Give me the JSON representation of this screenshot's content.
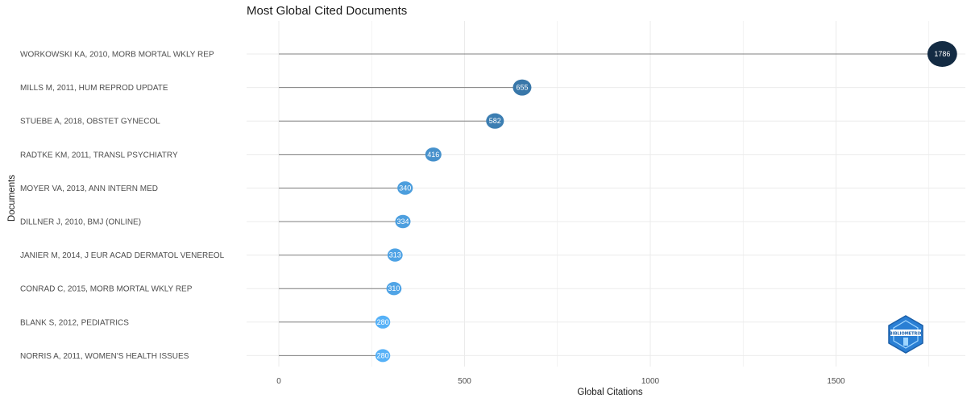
{
  "chart_data": {
    "type": "lollipop",
    "title": "Most Global Cited Documents",
    "xlabel": "Global Citations",
    "ylabel": "Documents",
    "xlim": [
      0,
      1800
    ],
    "xticks": [
      0,
      500,
      1000,
      1500
    ],
    "grid": true,
    "categories": [
      "WORKOWSKI KA, 2010, MORB MORTAL WKLY REP",
      "MILLS M, 2011, HUM REPROD UPDATE",
      "STUEBE A, 2018, OBSTET GYNECOL",
      "RADTKE KM, 2011, TRANSL PSYCHIATRY",
      "MOYER VA, 2013, ANN INTERN MED",
      "DILLNER J, 2010, BMJ (ONLINE)",
      "JANIER M, 2014, J EUR ACAD DERMATOL VENEREOL",
      "CONRAD C, 2015, MORB MORTAL WKLY REP",
      "BLANK S, 2012, PEDIATRICS",
      "NORRIS A, 2011, WOMEN'S HEALTH ISSUES"
    ],
    "values": [
      1786,
      655,
      582,
      416,
      340,
      334,
      313,
      310,
      280,
      280
    ],
    "value_labels": [
      "1786",
      "655",
      "582",
      "416",
      "340",
      "334",
      "313",
      "310",
      "280",
      "280"
    ],
    "colors": {
      "high": "#132b43",
      "low": "#56b1f7",
      "mid": "#4a90cf",
      "stem": "#7f7f7f",
      "grid": "#ebebeb"
    }
  },
  "logo": {
    "text": "BIBLIOMETRIX"
  }
}
